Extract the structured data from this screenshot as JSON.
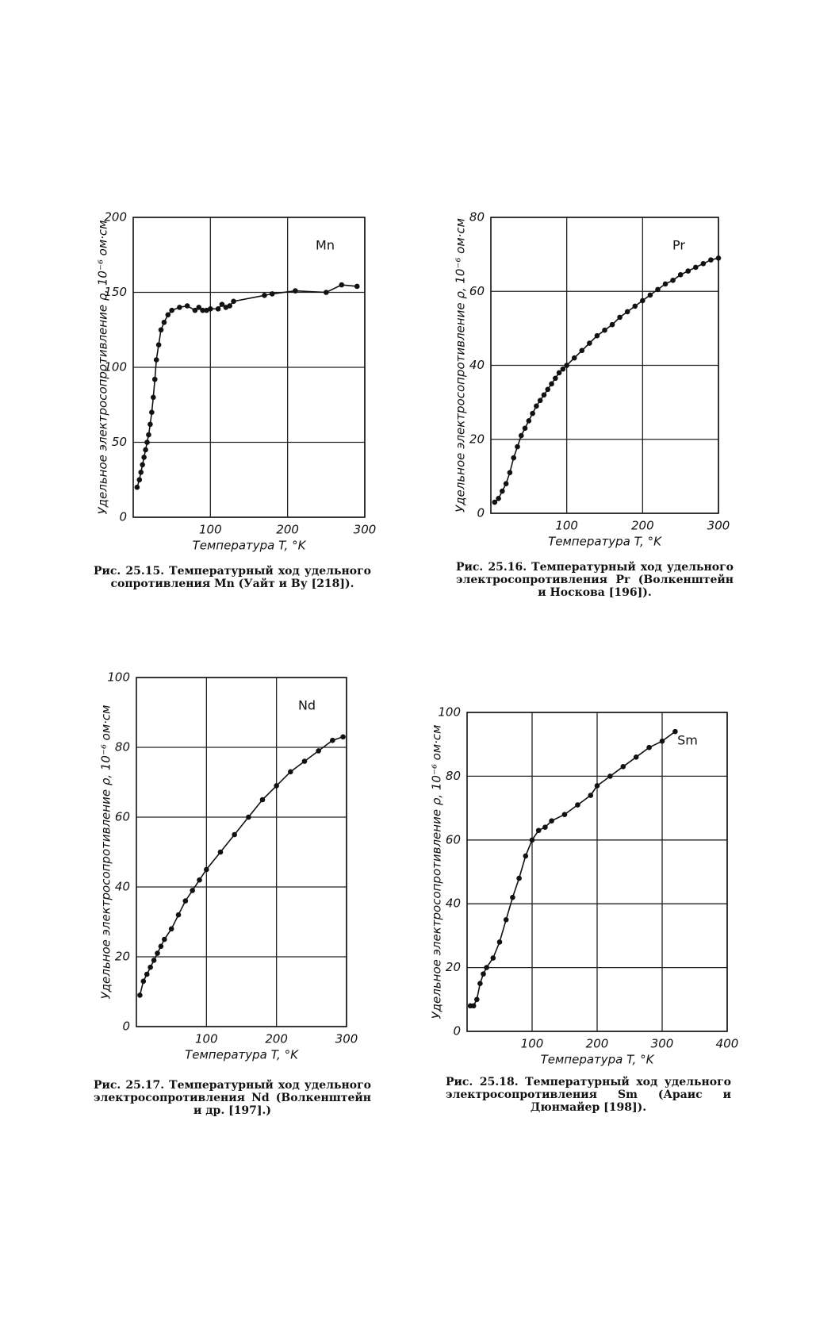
{
  "chart_data": [
    {
      "type": "scatter",
      "annotation": "Mn",
      "x_label": "Температура T, °K",
      "y_label": "Удельное электросопротивление ρ, 10⁻⁶ ом·см",
      "caption": "Рис. 25.15. Температурный ход удельного сопротивления Mn (Уайт и Ву [218]).",
      "x": [
        5,
        8,
        10,
        12,
        14,
        16,
        18,
        20,
        22,
        24,
        26,
        28,
        30,
        33,
        36,
        40,
        45,
        50,
        60,
        70,
        80,
        85,
        90,
        95,
        100,
        110,
        115,
        120,
        125,
        130,
        170,
        180,
        210,
        250,
        270,
        290
      ],
      "y": [
        20,
        25,
        30,
        35,
        40,
        45,
        50,
        55,
        62,
        70,
        80,
        92,
        105,
        115,
        125,
        130,
        135,
        138,
        140,
        141,
        138,
        140,
        138,
        138,
        139,
        139,
        142,
        140,
        141,
        144,
        148,
        149,
        151,
        150,
        155,
        154
      ],
      "xlim": [
        0,
        300
      ],
      "ylim": [
        0,
        200
      ],
      "xticks": [
        100,
        200,
        300
      ],
      "yticks": [
        0,
        50,
        100,
        150,
        200
      ],
      "color": "#111111"
    },
    {
      "type": "scatter",
      "annotation": "Pr",
      "x_label": "Температура T, °K",
      "y_label": "Удельное электросопротивление ρ, 10⁻⁶ ом·см",
      "caption": "Рис. 25.16. Температурный ход удельного электросопротивления Pr (Волкенштейн и Носкова [196]).",
      "x": [
        5,
        10,
        15,
        20,
        25,
        30,
        35,
        40,
        45,
        50,
        55,
        60,
        65,
        70,
        75,
        80,
        85,
        90,
        95,
        100,
        110,
        120,
        130,
        140,
        150,
        160,
        170,
        180,
        190,
        200,
        210,
        220,
        230,
        240,
        250,
        260,
        270,
        280,
        290,
        300
      ],
      "y": [
        3,
        4,
        6,
        8,
        11,
        15,
        18,
        21,
        23,
        25,
        27,
        29,
        30.5,
        32,
        33.5,
        35,
        36.5,
        38,
        39,
        40,
        42,
        44,
        46,
        48,
        49.5,
        51,
        53,
        54.5,
        56,
        57.5,
        59,
        60.5,
        62,
        63,
        64.5,
        65.5,
        66.5,
        67.5,
        68.5,
        69
      ],
      "xlim": [
        0,
        300
      ],
      "ylim": [
        0,
        80
      ],
      "xticks": [
        100,
        200,
        300
      ],
      "yticks": [
        0,
        20,
        40,
        60,
        80
      ],
      "color": "#111111"
    },
    {
      "type": "scatter",
      "annotation": "Nd",
      "x_label": "Температура T, °K",
      "y_label": "Удельное электросопротивление ρ, 10⁻⁶ ом·см",
      "caption": "Рис. 25.17. Температурный ход удельного электросопротивления Nd (Волкенштейн и др. [197].)",
      "x": [
        5,
        10,
        15,
        20,
        25,
        30,
        35,
        40,
        50,
        60,
        70,
        80,
        90,
        100,
        120,
        140,
        160,
        180,
        200,
        220,
        240,
        260,
        280,
        295
      ],
      "y": [
        9,
        13,
        15,
        17,
        19,
        21,
        23,
        25,
        28,
        32,
        36,
        39,
        42,
        45,
        50,
        55,
        60,
        65,
        69,
        73,
        76,
        79,
        82,
        83
      ],
      "xlim": [
        0,
        300
      ],
      "ylim": [
        0,
        100
      ],
      "xticks": [
        100,
        200,
        300
      ],
      "yticks": [
        0,
        20,
        40,
        60,
        80,
        100
      ],
      "color": "#111111"
    },
    {
      "type": "scatter",
      "annotation": "Sm",
      "x_label": "Температура T, °K",
      "y_label": "Удельное электросопротивление ρ, 10⁻⁶ ом·см",
      "caption": "Рис. 25.18. Температурный ход удельного электросопротивления Sm (Араис и Дюнмайер [198]).",
      "x": [
        5,
        10,
        15,
        20,
        25,
        30,
        40,
        50,
        60,
        70,
        80,
        90,
        100,
        110,
        120,
        130,
        150,
        170,
        190,
        200,
        220,
        240,
        260,
        280,
        300,
        320
      ],
      "y": [
        8,
        8,
        10,
        15,
        18,
        20,
        23,
        28,
        35,
        42,
        48,
        55,
        60,
        63,
        64,
        66,
        68,
        71,
        74,
        77,
        80,
        83,
        86,
        89,
        91,
        94
      ],
      "xlim": [
        0,
        400
      ],
      "ylim": [
        0,
        100
      ],
      "xticks": [
        100,
        200,
        300,
        400
      ],
      "yticks": [
        0,
        20,
        40,
        60,
        80,
        100
      ],
      "color": "#111111"
    }
  ]
}
